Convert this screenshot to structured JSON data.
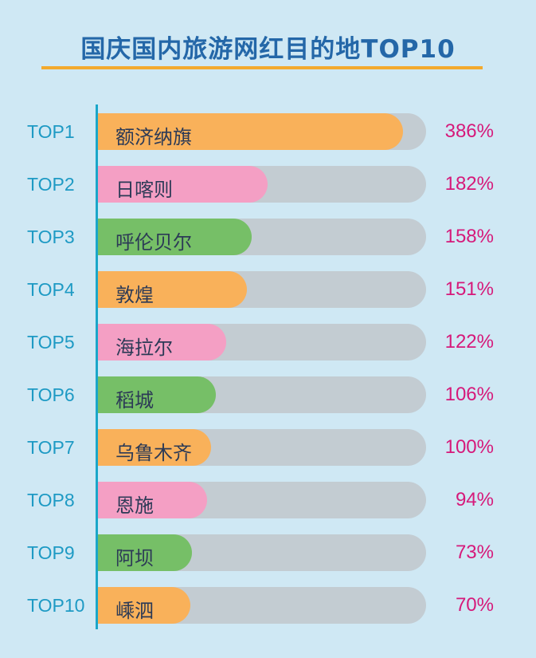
{
  "chart_data": {
    "type": "bar",
    "title": "国庆国内旅游网红目的地TOP10",
    "categories": [
      "额济纳旗",
      "日喀则",
      "呼伦贝尔",
      "敦煌",
      "海拉尔",
      "稻城",
      "乌鲁木齐",
      "恩施",
      "阿坝",
      "嵊泗"
    ],
    "ranks": [
      "TOP1",
      "TOP2",
      "TOP3",
      "TOP4",
      "TOP5",
      "TOP6",
      "TOP7",
      "TOP8",
      "TOP9",
      "TOP10"
    ],
    "values": [
      386,
      182,
      158,
      151,
      122,
      106,
      100,
      94,
      73,
      70
    ],
    "value_labels": [
      "386%",
      "182%",
      "158%",
      "151%",
      "122%",
      "106%",
      "100%",
      "94%",
      "73%",
      "70%"
    ],
    "fill_colors": [
      "#f9b15a",
      "#f49fc4",
      "#76bf67",
      "#f9b15a",
      "#f49fc4",
      "#76bf67",
      "#f9b15a",
      "#f49fc4",
      "#76bf67",
      "#f9b15a"
    ],
    "track_color": "#c3ccd2",
    "orientation": "horizontal"
  }
}
